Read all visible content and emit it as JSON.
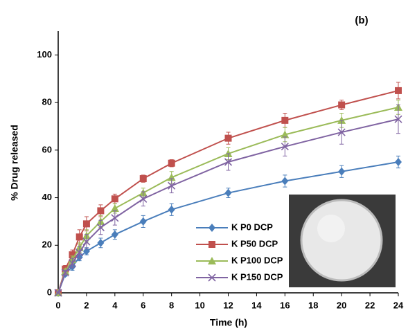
{
  "chart_data": {
    "type": "line",
    "title": "(b)",
    "xlabel": "Time (h)",
    "ylabel": "% Drug released",
    "x": [
      0,
      0.5,
      1,
      1.5,
      2,
      3,
      4,
      6,
      8,
      12,
      16,
      20,
      24
    ],
    "series": [
      {
        "name": "K P0 DCP",
        "color": "#4a7ebb",
        "marker": "diamond",
        "values": [
          0,
          8,
          11,
          15,
          17.5,
          21,
          24.5,
          30,
          35,
          42,
          47,
          51,
          55
        ],
        "errors": [
          0,
          1,
          1.5,
          1.5,
          1.5,
          2,
          2,
          2.5,
          2.5,
          2,
          2.5,
          2.5,
          2.5
        ]
      },
      {
        "name": "K P50 DCP",
        "color": "#c0504d",
        "marker": "square",
        "values": [
          0,
          10,
          16,
          23.5,
          29,
          34.5,
          39.5,
          48,
          54.5,
          65,
          72.5,
          79,
          85
        ],
        "errors": [
          0,
          1.5,
          2,
          3,
          3,
          2.5,
          2,
          1.5,
          1.5,
          2.5,
          3,
          2,
          3.5
        ]
      },
      {
        "name": "K P100 DCP",
        "color": "#9bbb59",
        "marker": "triangle",
        "values": [
          0,
          9,
          14,
          19,
          24,
          30,
          35.5,
          42,
          48.5,
          58.5,
          66.5,
          72.5,
          78
        ],
        "errors": [
          0,
          1,
          1.5,
          2,
          2.5,
          2.5,
          2,
          2,
          2.5,
          2.5,
          3,
          3,
          3
        ]
      },
      {
        "name": "K P150 DCP",
        "color": "#8064a2",
        "marker": "x",
        "values": [
          0,
          8.5,
          12.5,
          17,
          21.5,
          27.5,
          31.5,
          39.5,
          45,
          55,
          61.5,
          67.5,
          73
        ],
        "errors": [
          0,
          1,
          2,
          2.5,
          3,
          3,
          3,
          3,
          3,
          3.5,
          4,
          5,
          6
        ]
      }
    ],
    "xlim": [
      0,
      24
    ],
    "xticks": [
      0,
      2,
      4,
      6,
      8,
      10,
      12,
      14,
      16,
      18,
      20,
      22,
      24
    ],
    "ylim": [
      0,
      110
    ],
    "yticks": [
      0,
      20,
      40,
      60,
      80,
      100
    ],
    "grid": false
  }
}
